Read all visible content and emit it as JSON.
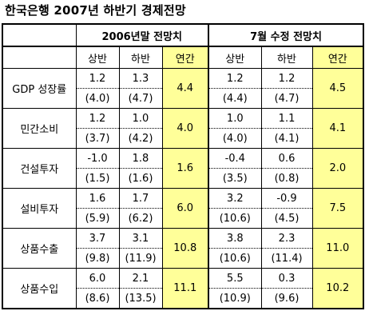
{
  "title": "한국은행 2007년 하반기 경제전망",
  "groups": [
    "2006년말 전망치",
    "7월 수정 전망치"
  ],
  "subheaders": [
    "상반",
    "하반",
    "연간",
    "상반",
    "하반",
    "연간"
  ],
  "rows": [
    {
      "label": "GDP 성장률",
      "top": [
        "1.2",
        "1.3",
        "1.2",
        "1.2"
      ],
      "bot": [
        "(4.0)",
        "(4.7)",
        "(4.4)",
        "(4.7)"
      ],
      "annual1": "4.4",
      "annual2": "4.5"
    },
    {
      "label": "민간소비",
      "top": [
        "1.2",
        "1.0",
        "1.0",
        "1.1"
      ],
      "bot": [
        "(3.7)",
        "(4.2)",
        "(4.0)",
        "(4.1)"
      ],
      "annual1": "4.0",
      "annual2": "4.1"
    },
    {
      "label": "건설투자",
      "top": [
        "-1.0",
        "1.8",
        "-0.4",
        "0.6"
      ],
      "bot": [
        "(1.5)",
        "(1.6)",
        "(3.5)",
        "(0.8)"
      ],
      "annual1": "1.6",
      "annual2": "2.0"
    },
    {
      "label": "설비투자",
      "top": [
        "1.6",
        "1.7",
        "3.2",
        "-0.9"
      ],
      "bot": [
        "(5.9)",
        "(6.2)",
        "(10.6)",
        "(4.5)"
      ],
      "annual1": "6.0",
      "annual2": "7.5"
    },
    {
      "label": "상품수출",
      "top": [
        "3.7",
        "3.1",
        "3.8",
        "2.3"
      ],
      "bot": [
        "(9.8)",
        "(11.9)",
        "(10.6)",
        "(11.4)"
      ],
      "annual1": "10.8",
      "annual2": "11.0"
    },
    {
      "label": "상품수입",
      "top": [
        "6.0",
        "2.1",
        "5.5",
        "0.3"
      ],
      "bot": [
        "(8.6)",
        "(13.5)",
        "(10.9)",
        "(9.6)"
      ],
      "annual1": "11.1",
      "annual2": "10.2"
    }
  ],
  "colors": {
    "highlight": "#ffff99",
    "border": "#000000"
  }
}
